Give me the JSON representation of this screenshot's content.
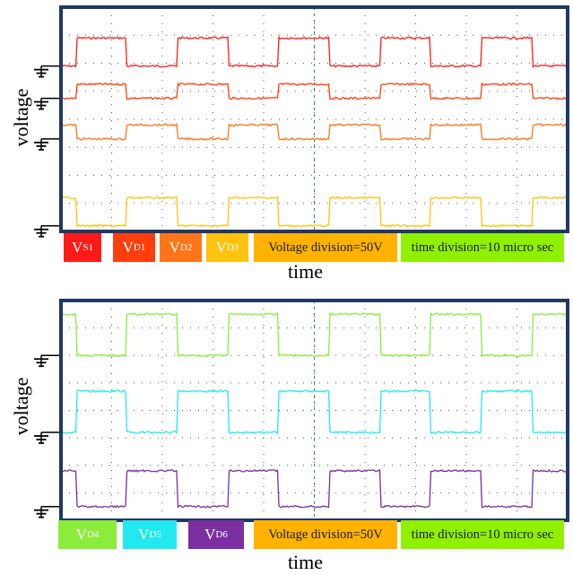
{
  "chart_data": [
    {
      "type": "line",
      "xlabel": "time",
      "ylabel": "voltage",
      "colors": {
        "frame": "#1f3864",
        "grid": "#555555",
        "trigger_line": "#2e8b57"
      },
      "legend": [
        {
          "main": "V",
          "sub": "S1",
          "color": "#ff1a1a"
        },
        {
          "main": "V",
          "sub": "D1",
          "color": "#ff3d0d"
        },
        {
          "main": "V",
          "sub": "D2",
          "color": "#ff7518"
        },
        {
          "main": "V",
          "sub": "D3",
          "color": "#ffc20e"
        },
        {
          "main": "Voltage division=50V",
          "sub": "",
          "color": "#ffb300"
        },
        {
          "main": "time division=10 micro sec",
          "sub": "",
          "color": "#8ff000"
        }
      ],
      "grid": {
        "x_divisions": 10,
        "y_divisions": 8
      },
      "period_div": 2,
      "series": [
        {
          "name": "VS1",
          "color": "#ff1a1a",
          "ground_div": 5.9,
          "amplitude_div": 1.0,
          "phase_div": 0.3
        },
        {
          "name": "VD1",
          "color": "#ff3d0d",
          "ground_div": 4.75,
          "amplitude_div": 0.5,
          "phase_div": 0.3
        },
        {
          "name": "VD2",
          "color": "#ff7518",
          "ground_div": 3.3,
          "amplitude_div": 0.5,
          "phase_div": 1.3
        },
        {
          "name": "VD3",
          "color": "#ffc20e",
          "ground_div": 0.2,
          "amplitude_div": 1.0,
          "phase_div": 1.3
        }
      ]
    },
    {
      "type": "line",
      "xlabel": "time",
      "ylabel": "voltage",
      "colors": {
        "frame": "#1f3864",
        "grid": "#555555",
        "trigger_line": "#2e8b57"
      },
      "legend": [
        {
          "main": "V",
          "sub": "D4",
          "color": "#8cec3c"
        },
        {
          "main": "V",
          "sub": "D5",
          "color": "#22e8f0"
        },
        {
          "main": "V",
          "sub": "D6",
          "color": "#7b2fa0"
        },
        {
          "main": "Voltage division=50V",
          "sub": "",
          "color": "#ffb300"
        },
        {
          "main": "time division=10 micro sec",
          "sub": "",
          "color": "#8ff000"
        }
      ],
      "grid": {
        "x_divisions": 10,
        "y_divisions": 8
      },
      "period_div": 2,
      "series": [
        {
          "name": "VD4",
          "color": "#8cec3c",
          "ground_div": 6.0,
          "amplitude_div": 1.5,
          "phase_div": 1.3
        },
        {
          "name": "VD5",
          "color": "#22e8f0",
          "ground_div": 3.2,
          "amplitude_div": 1.5,
          "phase_div": 0.3
        },
        {
          "name": "VD6",
          "color": "#7b2fa0",
          "ground_div": 0.5,
          "amplitude_div": 1.3,
          "phase_div": 1.3
        }
      ]
    }
  ]
}
